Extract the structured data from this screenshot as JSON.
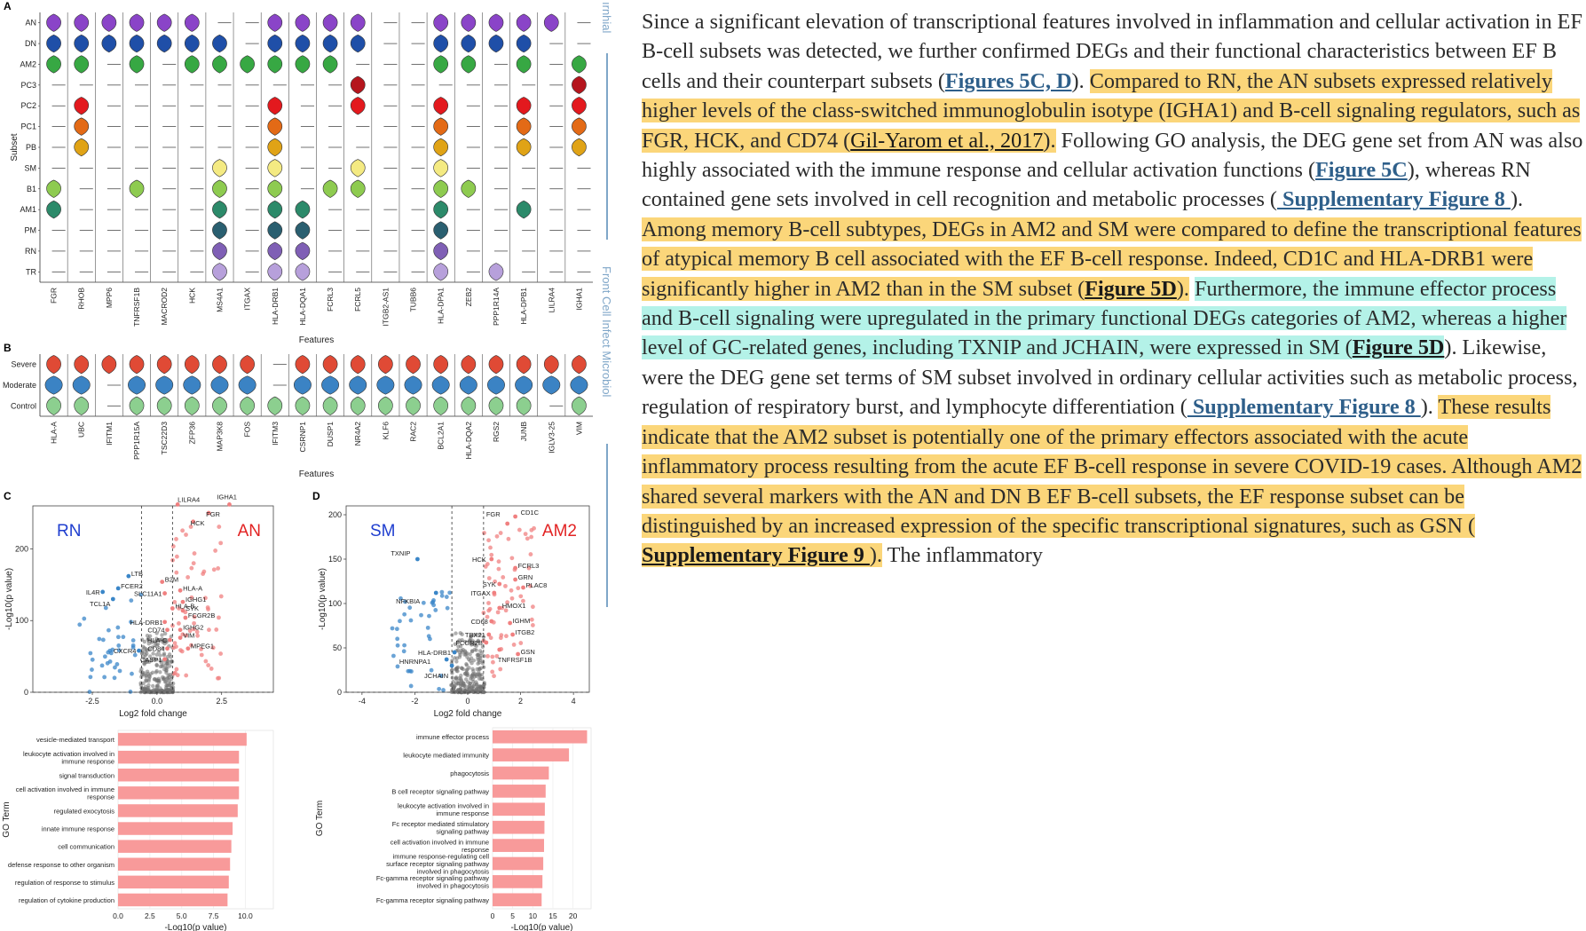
{
  "figure": {
    "panel_letters": [
      "A",
      "B",
      "C",
      "D"
    ],
    "panelA": {
      "ylabel": "Subset",
      "xlabel": "Features",
      "rows": [
        "AN",
        "DN",
        "AM2",
        "PC3",
        "PC2",
        "PC1",
        "PB",
        "SM",
        "B1",
        "AM1",
        "PM",
        "RN",
        "TR"
      ],
      "features": [
        "FGR",
        "RHOB",
        "MPP6",
        "TNFRSF1B",
        "MACROD2",
        "HCK",
        "MS4A1",
        "ITGAX",
        "HLA-DRB1",
        "HLA-DQA1",
        "FCRL3",
        "FCRL5",
        "ITGB2-AS1",
        "TUBB6",
        "HLA-DPA1",
        "ZEB2",
        "PPP1R14A",
        "HLA-DPB1",
        "LILRA4",
        "IGHA1"
      ]
    },
    "panelB": {
      "xlabel": "Features",
      "rows": [
        "Severe",
        "Moderate",
        "Control"
      ],
      "features": [
        "HLA-A",
        "UBC",
        "IFITM1",
        "PPP1R15A",
        "TSC22D3",
        "ZFP36",
        "MAP3K8",
        "FOS",
        "IFITM3",
        "CSRNP1",
        "DUSP1",
        "NR4A2",
        "KLF6",
        "RAC2",
        "BCL2A1",
        "HLA-DQA2",
        "RGS2",
        "JUNB",
        "IGLV3-25",
        "VIM"
      ]
    },
    "panelC": {
      "left_label": "RN",
      "right_label": "AN",
      "xlabel": "Log2 fold change",
      "ylabel": "-Log10(p value)",
      "xticks": [
        "-2.5",
        "0.0",
        "2.5"
      ],
      "yticks": [
        "0",
        "100",
        "200"
      ],
      "gene_labels": [
        "LILRA4",
        "IGHA1",
        "FGR",
        "HCK",
        "B2M",
        "HLA-A",
        "SLC11A1",
        "IGHG1",
        "SYK",
        "HLA-B",
        "FCGR2B",
        "HLA-DRB1",
        "CD74",
        "IGHG2",
        "VIM",
        "HLA-C",
        "CD84",
        "MPEG1",
        "CASP1",
        "LTB",
        "FCER2",
        "IL4R",
        "TCL1A",
        "CXCR4"
      ],
      "bar_xlabel": "-Log10(p value)",
      "bar_ylabel": "GO Term",
      "bar_xticks": [
        "0.0",
        "2.5",
        "5.0",
        "7.5",
        "10.0"
      ],
      "go_terms": [
        "vesicle-mediated transport",
        "leukocyte activation involved in immune response",
        "signal transduction",
        "cell activation involved in immune response",
        "regulated exocytosis",
        "innate immune response",
        "cell communication",
        "defense response to other organism",
        "regulation of response to stimulus",
        "regulation of cytokine production"
      ]
    },
    "panelD": {
      "left_label": "SM",
      "right_label": "AM2",
      "xlabel": "Log2 fold change",
      "ylabel": "-Log10(p value)",
      "xticks": [
        "-4",
        "-2",
        "0",
        "2",
        "4"
      ],
      "yticks": [
        "0",
        "50",
        "100",
        "150",
        "200"
      ],
      "gene_labels": [
        "CD1C",
        "FGR",
        "HCK",
        "FCRL3",
        "GRN",
        "SYK",
        "PLAC8",
        "ITGAX",
        "HMOX1",
        "CD68",
        "IGHM",
        "TBX21",
        "ITGB2",
        "FCGR2B",
        "GSN",
        "TNFRSF1B",
        "TXNIP",
        "NFKBIA",
        "HLA-DRB1",
        "HNRNPA1",
        "JCHAIN"
      ],
      "bar_xlabel": "-Log10(p value)",
      "bar_ylabel": "GO Term",
      "bar_xticks": [
        "0",
        "5",
        "10",
        "15",
        "20"
      ],
      "go_terms": [
        "immune effector process",
        "leukocyte mediated immunity",
        "phagocytosis",
        "B cell receptor signaling pathway",
        "leukocyte activation involved in immune response",
        "Fc receptor mediated stimulatory signaling pathway",
        "cell activation involved in immune response",
        "immune response-regulating cell surface receptor signaling pathway involved in phagocytosis",
        "Fc-gamma receptor signaling pathway involved in phagocytosis",
        "Fc-gamma receptor signaling pathway"
      ]
    },
    "side_text_top": "ırnhial",
    "side_text_bottom": "Front Cell Infect Microbiol"
  },
  "colors": {
    "highlight_yellow": "#fbd67a",
    "highlight_cyan": "#b4f2e8",
    "link_blue": "#2e5f8a",
    "volcano_up": "#f08080",
    "volcano_down": "#3a86c8",
    "bar_fill": "#f89a9a"
  },
  "article": {
    "p1": "Since a significant elevation of transcriptional features involved in inflammation and cellular activation in EF B-cell subsets was detected, we further confirmed DEGs and their functional characteristics between EF B cells and their counterpart subsets (",
    "link1": "Figures 5C, D",
    "p2": "). ",
    "h1": "Compared to RN, the AN subsets expressed relatively higher levels of the class-switched immunoglobulin isotype (IGHA1) and B-cell signaling regulators, such as FGR, HCK, and CD74 (",
    "ref1": "Gil-Yarom et al., 2017",
    "h1b": ").",
    "p3": " Following GO analysis, the DEG gene set from AN was also highly associated with the immune response and cellular activation functions (",
    "link2": "Figure 5C",
    "p4": "), whereas RN contained gene sets involved in cell recognition and metabolic processes (",
    "link3": " Supplementary Figure 8 ",
    "p5": "). ",
    "h2": "Among memory B-cell subtypes, DEGs in AM2 and SM were compared to define the transcriptional features of atypical memory B cell associated with the EF B-cell response. Indeed, CD1C and HLA-DRB1 were significantly higher in AM2 than in the SM subset (",
    "link4": "Figure 5D",
    "h2b": ").",
    "p6": " ",
    "c1": "Furthermore, the immune effector process and B-cell signaling were upregulated in the primary functional DEGs categories of AM2, whereas a higher level of GC-related genes, including TXNIP and JCHAIN, were expressed in SM (",
    "link5": "Figure 5D",
    "p7": "). Likewise, were the DEG gene set terms of SM subset involved in ordinary cellular activities such as metabolic process, regulation of respiratory burst, and lymphocyte differentiation (",
    "link6": " Supplementary Figure 8 ",
    "p8": "). ",
    "h3": "These results indicate that the AM2 subset is potentially one of the primary effectors associated with the acute inflammatory process resulting from the acute EF B-cell response in severe COVID-19 cases. Although AM2 shared several markers with the AN and DN B EF B-cell subsets, the EF response subset can be distinguished by an increased expression of the specific transcriptional signatures, such as GSN (",
    "link7": " Supplementary Figure 9 ",
    "h3b": ").",
    "p9": " The inflammatory"
  }
}
